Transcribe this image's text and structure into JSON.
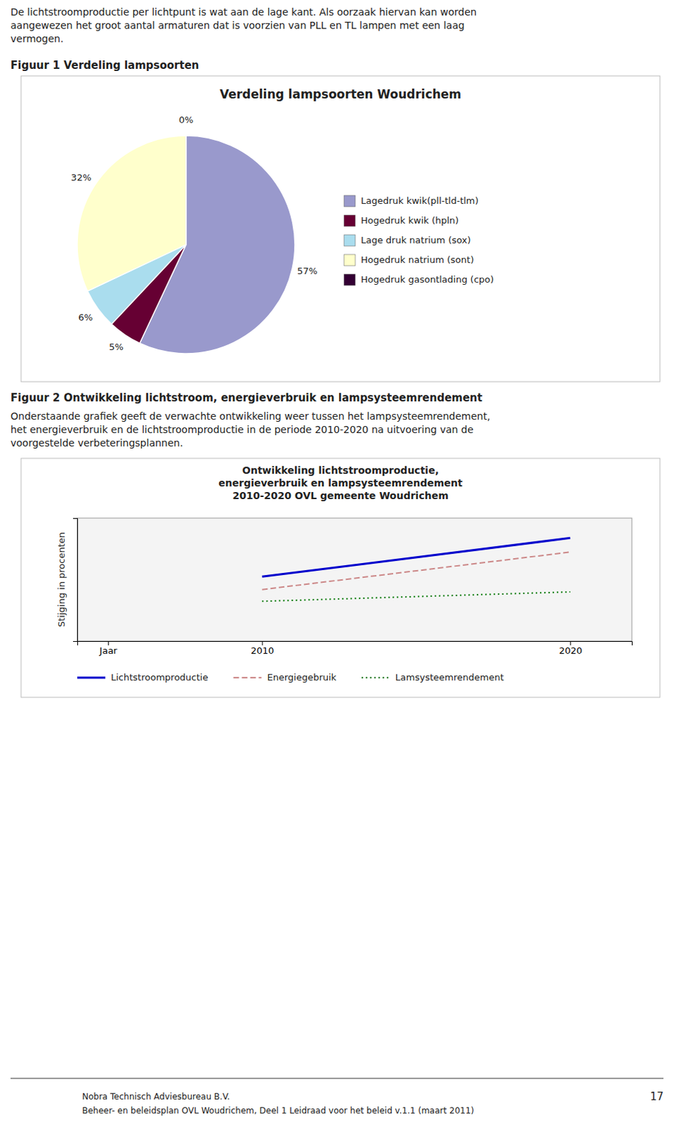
{
  "page": {
    "text_top": [
      "De lichtstroomproductie per lichtpunt is wat aan de lage kant. Als oorzaak hiervan kan worden",
      "aangewezen het groot aantal armaturen dat is voorzien van PLL en TL lampen met een laag",
      "vermogen."
    ],
    "figure_labels": [
      "Figuur 1 Verdeling lampsoorten",
      "Figuur 2 Ontwikkeling lichtstroom, energieverbruik en lampsysteemrendement"
    ],
    "figure2_text": [
      "Onderstaande grafiek geeft de verwachte ontwikkeling weer tussen het lampsysteemrendement,",
      "het energieverbruik en de lichtstroomproductie in de periode 2010-2020 na uitvoering van de",
      "voorgestelde verbeteringsplannen."
    ],
    "footer": [
      "Nobra Technisch Adviesbureau B.V.",
      "Beheer- en beleidsplan OVL Woudrichem, Deel 1 Leidraad voor het beleid v.1.1 (maart 2011)"
    ],
    "page_number": "17"
  },
  "chart_data": [
    {
      "type": "pie",
      "title": "Verdeling lampsoorten Woudrichem",
      "categories": [
        "Lagedruk kwik(pll-tld-tlm)",
        "Hogedruk kwik (hpln)",
        "Lage druk natrium (sox)",
        "Hogedruk natrium (sont)",
        "Hogedruk gasontlading (cpo)"
      ],
      "values": [
        57,
        5,
        6,
        32,
        0
      ],
      "value_labels": [
        "57%",
        "5%",
        "6%",
        "32%",
        "0%"
      ],
      "colors": [
        "#9999cc",
        "#660033",
        "#aaddee",
        "#ffffcc",
        "#330033"
      ],
      "data_labels": true,
      "legend": "right"
    },
    {
      "type": "line",
      "title": "Ontwikkeling lichtstroomproductie,\nenergieverbruik en lampsysteemrendement\n2010-2020 OVL gemeente Woudrichem",
      "y_label": "Stijging in procenten",
      "x": [
        2010,
        2020
      ],
      "series": [
        {
          "name": "Lichtstroomproductie",
          "color": "#0000cc",
          "line_style": "solid",
          "values": [
            0.55,
            0.88
          ]
        },
        {
          "name": "Energiegebruik",
          "color": "#cc8888",
          "line_style": "dashed",
          "values": [
            0.44,
            0.76
          ]
        },
        {
          "name": "Lamsysteemrendement",
          "color": "#007700",
          "line_style": "dotted",
          "values": [
            0.34,
            0.42
          ]
        }
      ],
      "xlim": [
        2004,
        2022
      ],
      "xticks": [
        {
          "value": 2005,
          "label": "Jaar"
        },
        2010,
        2020
      ],
      "ylim": [
        0,
        1.05
      ],
      "tick_labels": "x",
      "grid": false,
      "legend": "bottom"
    }
  ]
}
